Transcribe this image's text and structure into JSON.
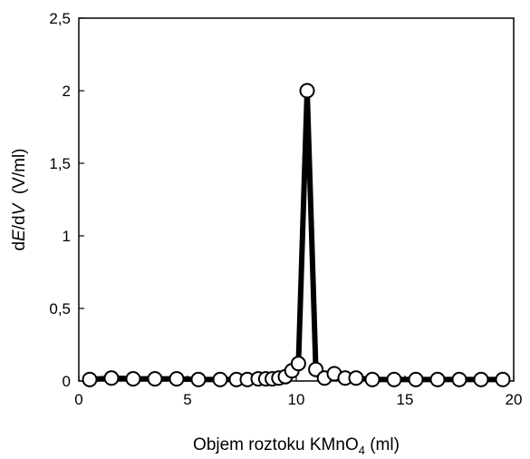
{
  "chart_data": {
    "type": "line",
    "title": "",
    "xlabel": {
      "prefix": "Objem roztoku KMnO",
      "sub": "4",
      "suffix": " (ml)"
    },
    "ylabel": {
      "d1": "d",
      "E": "E",
      "mid": "/d",
      "V": "V",
      "unit": "  (V/ml)"
    },
    "xlim": [
      0,
      20
    ],
    "ylim": [
      0,
      2.5
    ],
    "xticks": [
      {
        "v": 0,
        "label": "0"
      },
      {
        "v": 5,
        "label": "5"
      },
      {
        "v": 10,
        "label": "10"
      },
      {
        "v": 15,
        "label": "15"
      },
      {
        "v": 20,
        "label": "20"
      }
    ],
    "yticks": [
      {
        "v": 0,
        "label": "0"
      },
      {
        "v": 0.5,
        "label": "0,5"
      },
      {
        "v": 1,
        "label": "1"
      },
      {
        "v": 1.5,
        "label": "1,5"
      },
      {
        "v": 2,
        "label": "2"
      },
      {
        "v": 2.5,
        "label": "2,5"
      }
    ],
    "grid": false,
    "legend": "none",
    "line_color": "#000000",
    "marker_fill": "#ffffff",
    "series": [
      {
        "marker": "circle",
        "points": [
          [
            0.5,
            0.01
          ],
          [
            1.5,
            0.02
          ],
          [
            2.5,
            0.015
          ],
          [
            3.5,
            0.015
          ],
          [
            4.5,
            0.015
          ],
          [
            5.5,
            0.01
          ],
          [
            6.5,
            0.01
          ],
          [
            7.25,
            0.01
          ],
          [
            7.75,
            0.01
          ],
          [
            8.25,
            0.015
          ],
          [
            8.6,
            0.015
          ],
          [
            8.9,
            0.015
          ],
          [
            9.2,
            0.02
          ],
          [
            9.5,
            0.03
          ],
          [
            9.8,
            0.07
          ],
          [
            10.1,
            0.12
          ],
          [
            10.5,
            2.0
          ],
          [
            10.9,
            0.08
          ],
          [
            11.3,
            0.02
          ],
          [
            11.75,
            0.05
          ],
          [
            12.25,
            0.02
          ],
          [
            12.75,
            0.02
          ],
          [
            13.5,
            0.01
          ],
          [
            14.5,
            0.01
          ],
          [
            15.5,
            0.01
          ],
          [
            16.5,
            0.01
          ],
          [
            17.5,
            0.01
          ],
          [
            18.5,
            0.01
          ],
          [
            19.5,
            0.01
          ]
        ]
      }
    ]
  }
}
